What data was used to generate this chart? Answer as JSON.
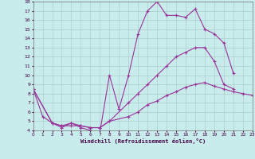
{
  "xlabel": "Windchill (Refroidissement éolien,°C)",
  "xlim": [
    0,
    23
  ],
  "ylim": [
    4,
    18
  ],
  "yticks": [
    4,
    5,
    6,
    7,
    8,
    9,
    10,
    11,
    12,
    13,
    14,
    15,
    16,
    17,
    18
  ],
  "xticks": [
    0,
    1,
    2,
    3,
    4,
    5,
    6,
    7,
    8,
    9,
    10,
    11,
    12,
    13,
    14,
    15,
    16,
    17,
    18,
    19,
    20,
    21,
    22,
    23
  ],
  "bg_color": "#c8ecec",
  "grid_color": "#b0cccc",
  "line_color": "#993399",
  "lines": [
    {
      "x": [
        0,
        1,
        2,
        3,
        4,
        5,
        6,
        7,
        8,
        9,
        10,
        11,
        12,
        13,
        14,
        15,
        16,
        17,
        18,
        19,
        20,
        21
      ],
      "y": [
        8.5,
        5.5,
        4.8,
        4.3,
        4.8,
        4.3,
        4.0,
        3.8,
        10.0,
        6.3,
        10.0,
        14.5,
        17.0,
        18.0,
        16.5,
        16.5,
        16.3,
        17.2,
        15.0,
        14.5,
        13.5,
        10.2
      ]
    },
    {
      "x": [
        0,
        2,
        3,
        4,
        5,
        6,
        7,
        8,
        10,
        11,
        12,
        13,
        14,
        15,
        16,
        17,
        18,
        19,
        20,
        21
      ],
      "y": [
        8.5,
        4.8,
        4.5,
        4.8,
        4.5,
        4.3,
        4.3,
        5.0,
        7.0,
        8.0,
        9.0,
        10.0,
        11.0,
        12.0,
        12.5,
        13.0,
        13.0,
        11.5,
        9.0,
        8.5
      ]
    },
    {
      "x": [
        0,
        2,
        3,
        4,
        5,
        6,
        7,
        8,
        10,
        11,
        12,
        13,
        14,
        15,
        16,
        17,
        18,
        19,
        20,
        21,
        22,
        23
      ],
      "y": [
        8.5,
        4.8,
        4.5,
        4.5,
        4.5,
        4.3,
        4.3,
        5.0,
        5.5,
        6.0,
        6.8,
        7.2,
        7.8,
        8.2,
        8.7,
        9.0,
        9.2,
        8.8,
        8.5,
        8.2,
        8.0,
        7.8
      ]
    }
  ]
}
